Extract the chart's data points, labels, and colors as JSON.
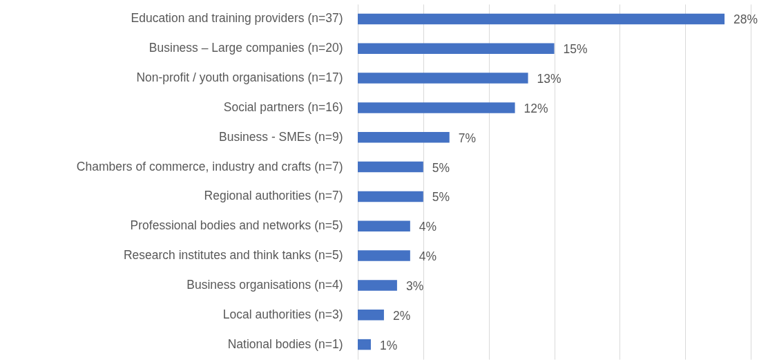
{
  "chart_data": {
    "type": "bar",
    "orientation": "horizontal",
    "categories": [
      "Education and training providers (n=37)",
      "Business – Large companies (n=20)",
      "Non-profit / youth organisations (n=17)",
      "Social partners (n=16)",
      "Business - SMEs (n=9)",
      "Chambers of commerce, industry and crafts (n=7)",
      "Regional authorities (n=7)",
      "Professional bodies and networks (n=5)",
      "Research institutes and think tanks (n=5)",
      "Business organisations (n=4)",
      "Local authorities (n=3)",
      "National bodies (n=1)"
    ],
    "values": [
      28,
      15,
      13,
      12,
      7,
      5,
      5,
      4,
      4,
      3,
      2,
      1
    ],
    "value_labels": [
      "28%",
      "15%",
      "13%",
      "12%",
      "7%",
      "5%",
      "5%",
      "4%",
      "4%",
      "3%",
      "2%",
      "1%"
    ],
    "color": "#4472c4",
    "xlim": [
      0,
      30
    ],
    "xticks": [
      {
        "value": 0,
        "label": null
      },
      {
        "value": 5,
        "label": null
      },
      {
        "value": 10,
        "label": null
      },
      {
        "value": 15,
        "label": null
      },
      {
        "value": 20,
        "label": null
      },
      {
        "value": 25,
        "label": null
      },
      {
        "value": 30,
        "label": null
      }
    ],
    "grid": "x",
    "tick_labels": "y"
  }
}
